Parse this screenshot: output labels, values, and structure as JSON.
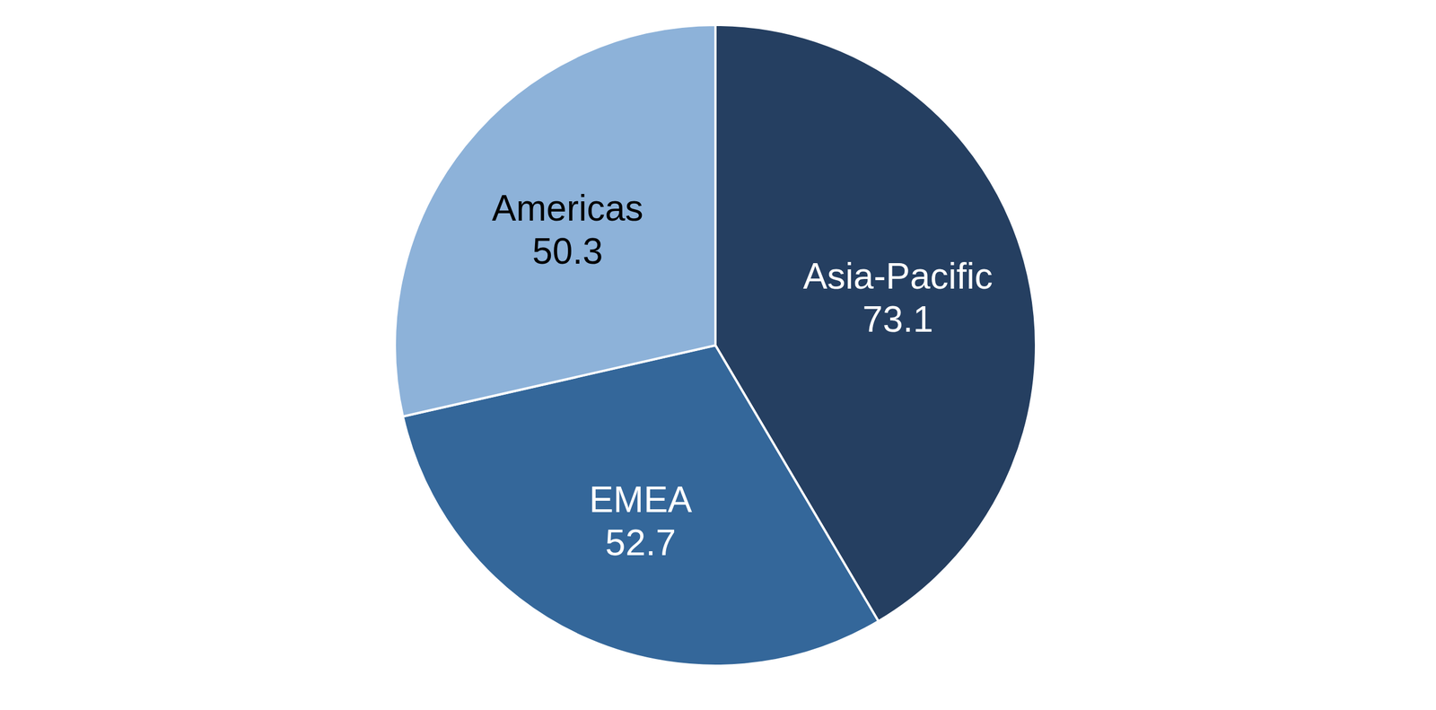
{
  "chart_data": {
    "type": "pie",
    "categories": [
      "Asia-Pacific",
      "EMEA",
      "Americas"
    ],
    "values": [
      73.1,
      52.7,
      50.3
    ],
    "colors": [
      "#253f61",
      "#34679a",
      "#8db2d9"
    ],
    "data_labels": true
  }
}
